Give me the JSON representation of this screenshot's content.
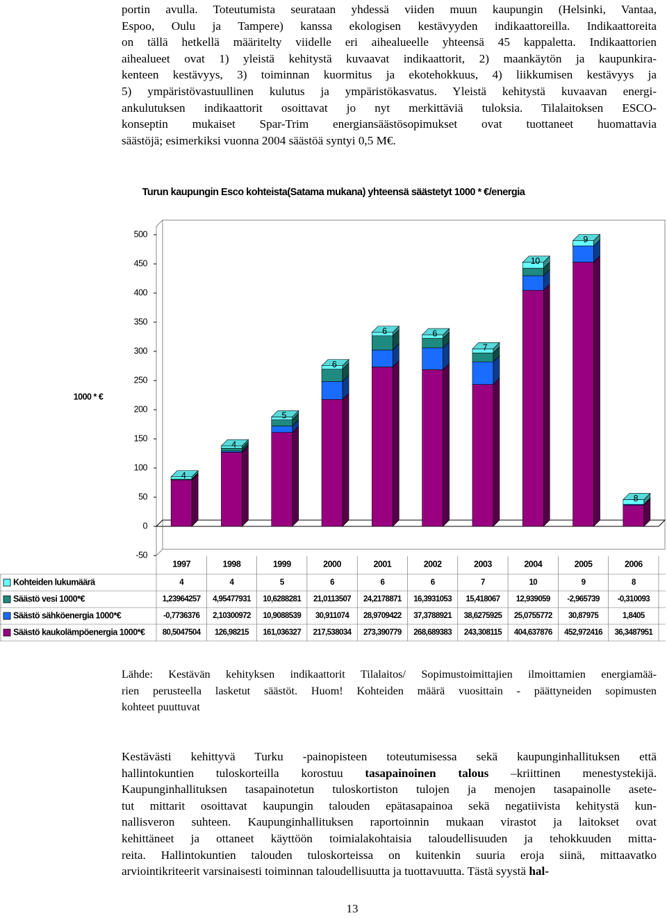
{
  "top_paragraph": {
    "lines": [
      "portin avulla. Toteutumista seurataan yhdessä viiden muun kaupungin (Helsinki, Vantaa,",
      "Espoo, Oulu ja Tampere) kanssa ekologisen kestävyyden indikaattoreilla. Indikaattoreita",
      "on tällä hetkellä määritelty viidelle eri aihealueelle yhteensä 45 kappaletta. Indikaattorien",
      "aihealueet ovat 1) yleistä kehitystä kuvaavat indikaattorit, 2) maankäytön ja kaupunkira-",
      "kenteen kestävyys, 3) toiminnan kuormitus ja ekotehokkuus, 4) liikkumisen kestävyys ja",
      "5) ympäristövastuullinen kulutus ja ympäristökasvatus. Yleistä kehitystä kuvaavan energi-",
      "ankulutuksen indikaattorit osoittavat jo nyt merkittäviä tuloksia. Tilalaitoksen ESCO-",
      "konseptin mukaiset Spar-Trim energiansäästösopimukset ovat tuottaneet huomattavia",
      "säästöjä; esimerkiksi vuonna 2004 säästöä syntyi 0,5 M€."
    ]
  },
  "chart_data": {
    "type": "bar",
    "stacked": true,
    "title": "Turun kaupungin Esco kohteista(Satama mukana) yhteensä säästetyt 1000 * €/energia",
    "y_label": "1000 * €",
    "categories": [
      "1997",
      "1998",
      "1999",
      "2000",
      "2001",
      "2002",
      "2003",
      "2004",
      "2005",
      "2006"
    ],
    "series": [
      {
        "name": "Kohteiden lukumäärä",
        "color": "#66ffff",
        "values": [
          4,
          4,
          5,
          6,
          6,
          6,
          7,
          10,
          9,
          8
        ]
      },
      {
        "name": "Säästö vesi 1000*€",
        "color": "#1f8a80",
        "values": [
          1.23964257,
          4.95477931,
          10.6288281,
          21.0113507,
          24.2178871,
          16.3931053,
          15.418067,
          12.939059,
          -2.965739,
          -0.310093
        ],
        "value_labels": [
          "1,23964257",
          "4,95477931",
          "10,6288281",
          "21,0113507",
          "24,2178871",
          "16,3931053",
          "15,418067",
          "12,939059",
          "-2,965739",
          "-0,310093"
        ]
      },
      {
        "name": "Säästö sähköenergia 1000*€",
        "color": "#1a6cff",
        "values": [
          -0.7736376,
          2.10300972,
          10.9088539,
          30.911074,
          28.9709422,
          37.3788921,
          38.6275925,
          25.0755772,
          30.87975,
          1.8405
        ],
        "value_labels": [
          "-0,7736376",
          "2,10300972",
          "10,9088539",
          "30,911074",
          "28,9709422",
          "37,3788921",
          "38,6275925",
          "25,0755772",
          "30,87975",
          "1,8405"
        ]
      },
      {
        "name": "Säästö kaukolämpöenergia 1000*€",
        "color": "#990080",
        "values": [
          80.5047504,
          126.98215,
          161.036327,
          217.538034,
          273.390779,
          268.689383,
          243.308115,
          404.637876,
          452.972416,
          36.3487951
        ],
        "value_labels": [
          "80,5047504",
          "126,98215",
          "161,036327",
          "217,538034",
          "273,390779",
          "268,689383",
          "243,308115",
          "404,637876",
          "452,972416",
          "36,3487951"
        ]
      }
    ],
    "ylim": [
      -50,
      500
    ],
    "yticks": [
      -50,
      0,
      50,
      100,
      150,
      200,
      250,
      300,
      350,
      400,
      450,
      500
    ],
    "grid": false
  },
  "source_note": {
    "lines": [
      "Lähde: Kestävän kehityksen indikaattorit Tilalaitos/ Sopimustoimittajien ilmoittamien energiamää-",
      "rien perusteella lasketut säästöt. Huom! Kohteiden määrä vuosittain - päättyneiden sopimusten",
      "kohteet puuttuvat"
    ]
  },
  "bottom_paragraph": {
    "lines": [
      [
        "Kestävästi kehittyvä Turku -painopisteen toteutumisessa sekä kaupunginhallituksen että"
      ],
      [
        "hallintokuntien tuloskorteilla korostuu ",
        {
          "bold": "tasapainoinen talous"
        },
        " –kriittinen menestystekijä."
      ],
      [
        "Kaupunginhallituksen tasapainotetun tuloskortiston tulojen ja menojen tasapainolle asete-"
      ],
      [
        "tut mittarit osoittavat kaupungin talouden epätasapainoa sekä negatiivista kehitystä kun-"
      ],
      [
        "nallisveron suhteen. Kaupunginhallituksen raportoinnin mukaan virastot ja laitokset ovat"
      ],
      [
        "kehittäneet ja ottaneet käyttöön toimialakohtaisia taloudellisuuden ja tehokkuuden mitta-"
      ],
      [
        "reita. Hallintokuntien talouden tuloskorteissa on kuitenkin suuria eroja siinä, mittaavatko"
      ],
      [
        "arviointikriteerit varsinaisesti toiminnan taloudellisuutta ja tuottavuutta. Tästä syystä ",
        {
          "bold": "hal-"
        }
      ]
    ]
  },
  "page_number": "13"
}
